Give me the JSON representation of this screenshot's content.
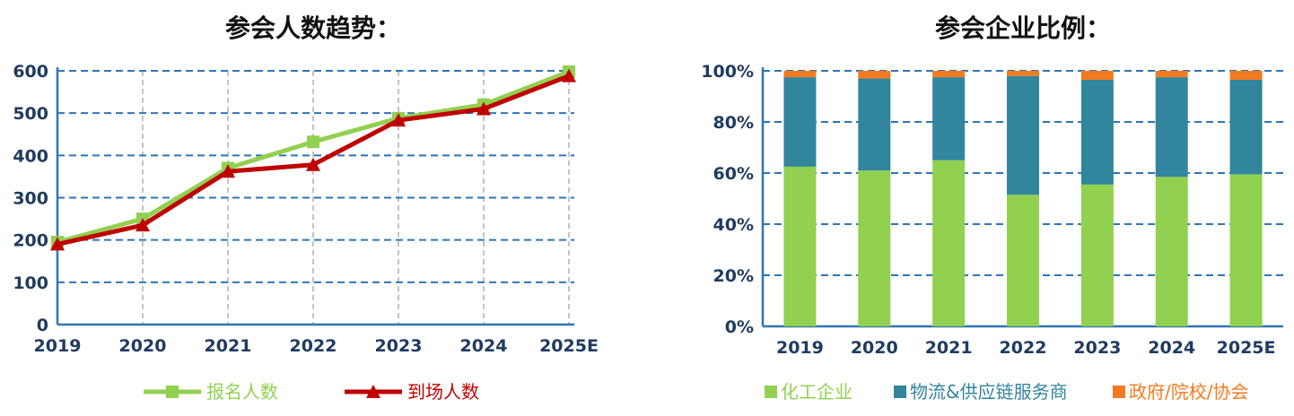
{
  "charts": [
    {
      "title": "参会人数趋势：",
      "chart_data": {
        "type": "line",
        "title": "参会人数趋势：",
        "x": [
          "2019",
          "2020",
          "2021",
          "2022",
          "2023",
          "2024",
          "2025E"
        ],
        "ylim": [
          0,
          600
        ],
        "yticks": [
          "0",
          "100",
          "200",
          "300",
          "400",
          "500",
          "600"
        ],
        "grid": true,
        "legend": "bottom",
        "series": [
          {
            "name": "报名人数",
            "values": [
              195,
              250,
              370,
              432,
              488,
              520,
              598
            ],
            "color": "#92d050",
            "marker": "square"
          },
          {
            "name": "到场人数",
            "values": [
              190,
              235,
              362,
              378,
              483,
              510,
              588
            ],
            "color": "#c00000",
            "marker": "triangle"
          }
        ]
      }
    },
    {
      "title": "参会企业比例：",
      "chart_data": {
        "type": "bar",
        "stacked": true,
        "title": "参会企业比例：",
        "categories": [
          "2019",
          "2020",
          "2021",
          "2022",
          "2023",
          "2024",
          "2025E"
        ],
        "ylim": [
          0,
          100
        ],
        "yticks": [
          "0%",
          "20%",
          "40%",
          "60%",
          "80%",
          "100%"
        ],
        "grid": true,
        "legend": "bottom",
        "series": [
          {
            "name": "化工企业",
            "values": [
              62.5,
              61,
              65,
              51.5,
              55.5,
              58.5,
              59.5
            ],
            "color": "#92d050"
          },
          {
            "name": "物流&供应链服务商",
            "values": [
              35,
              36,
              32.5,
              46.5,
              41,
              39,
              37
            ],
            "color": "#31859c"
          },
          {
            "name": "政府/院校/协会",
            "values": [
              2.5,
              3,
              2.5,
              2,
              3.5,
              2.5,
              3.5
            ],
            "color": "#f47a20"
          }
        ]
      }
    }
  ]
}
